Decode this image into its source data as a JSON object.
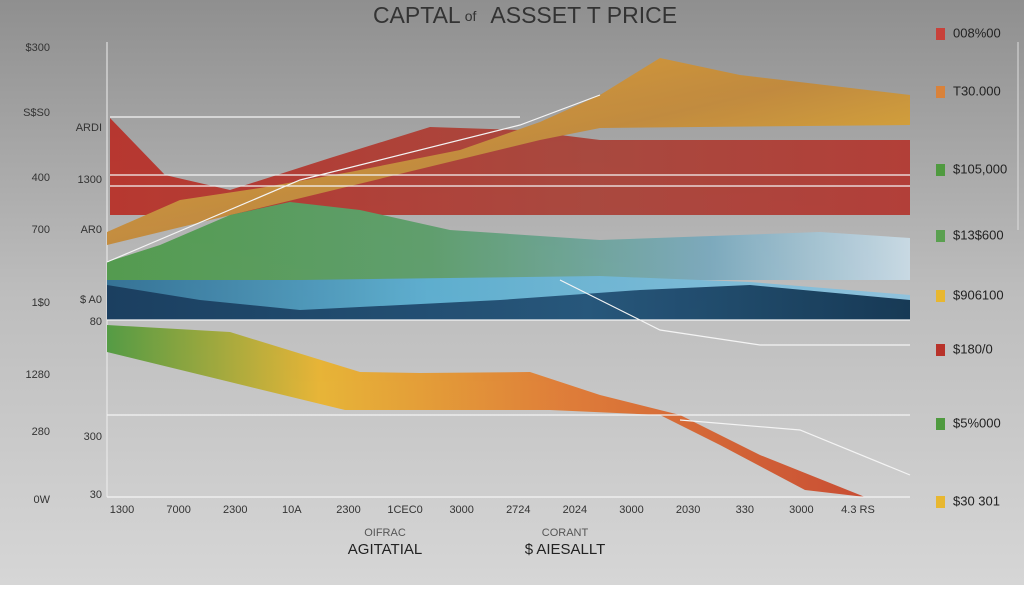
{
  "header": {
    "title_parts": [
      "CAPTAL",
      "of",
      "ASSSET T PRICE"
    ]
  },
  "left_labels": [
    "$300",
    "S$S0",
    "400",
    "700",
    "1$0",
    "1280",
    "280",
    "0W"
  ],
  "inner_labels": [
    "ARDI",
    "1300",
    "AR0",
    "$ A0",
    "80",
    "300",
    "30"
  ],
  "legend": [
    "008%00",
    "T30.000",
    "$105,000",
    "$13$600",
    "$906100",
    "$180/0",
    "$5%000",
    "$30 301"
  ],
  "bottom_ticks": [
    "1300",
    "7000",
    "2300",
    "10A",
    "2300",
    "1CEC0",
    "3000",
    "2724",
    "2024",
    "3000",
    "2030",
    "330",
    "3000",
    "4.3 RS"
  ],
  "bottom_captions": [
    {
      "small": "OIFRAC",
      "large": "AGITATIAL"
    },
    {
      "small": "CORANT",
      "large": "$ AIESALLT"
    }
  ]
}
